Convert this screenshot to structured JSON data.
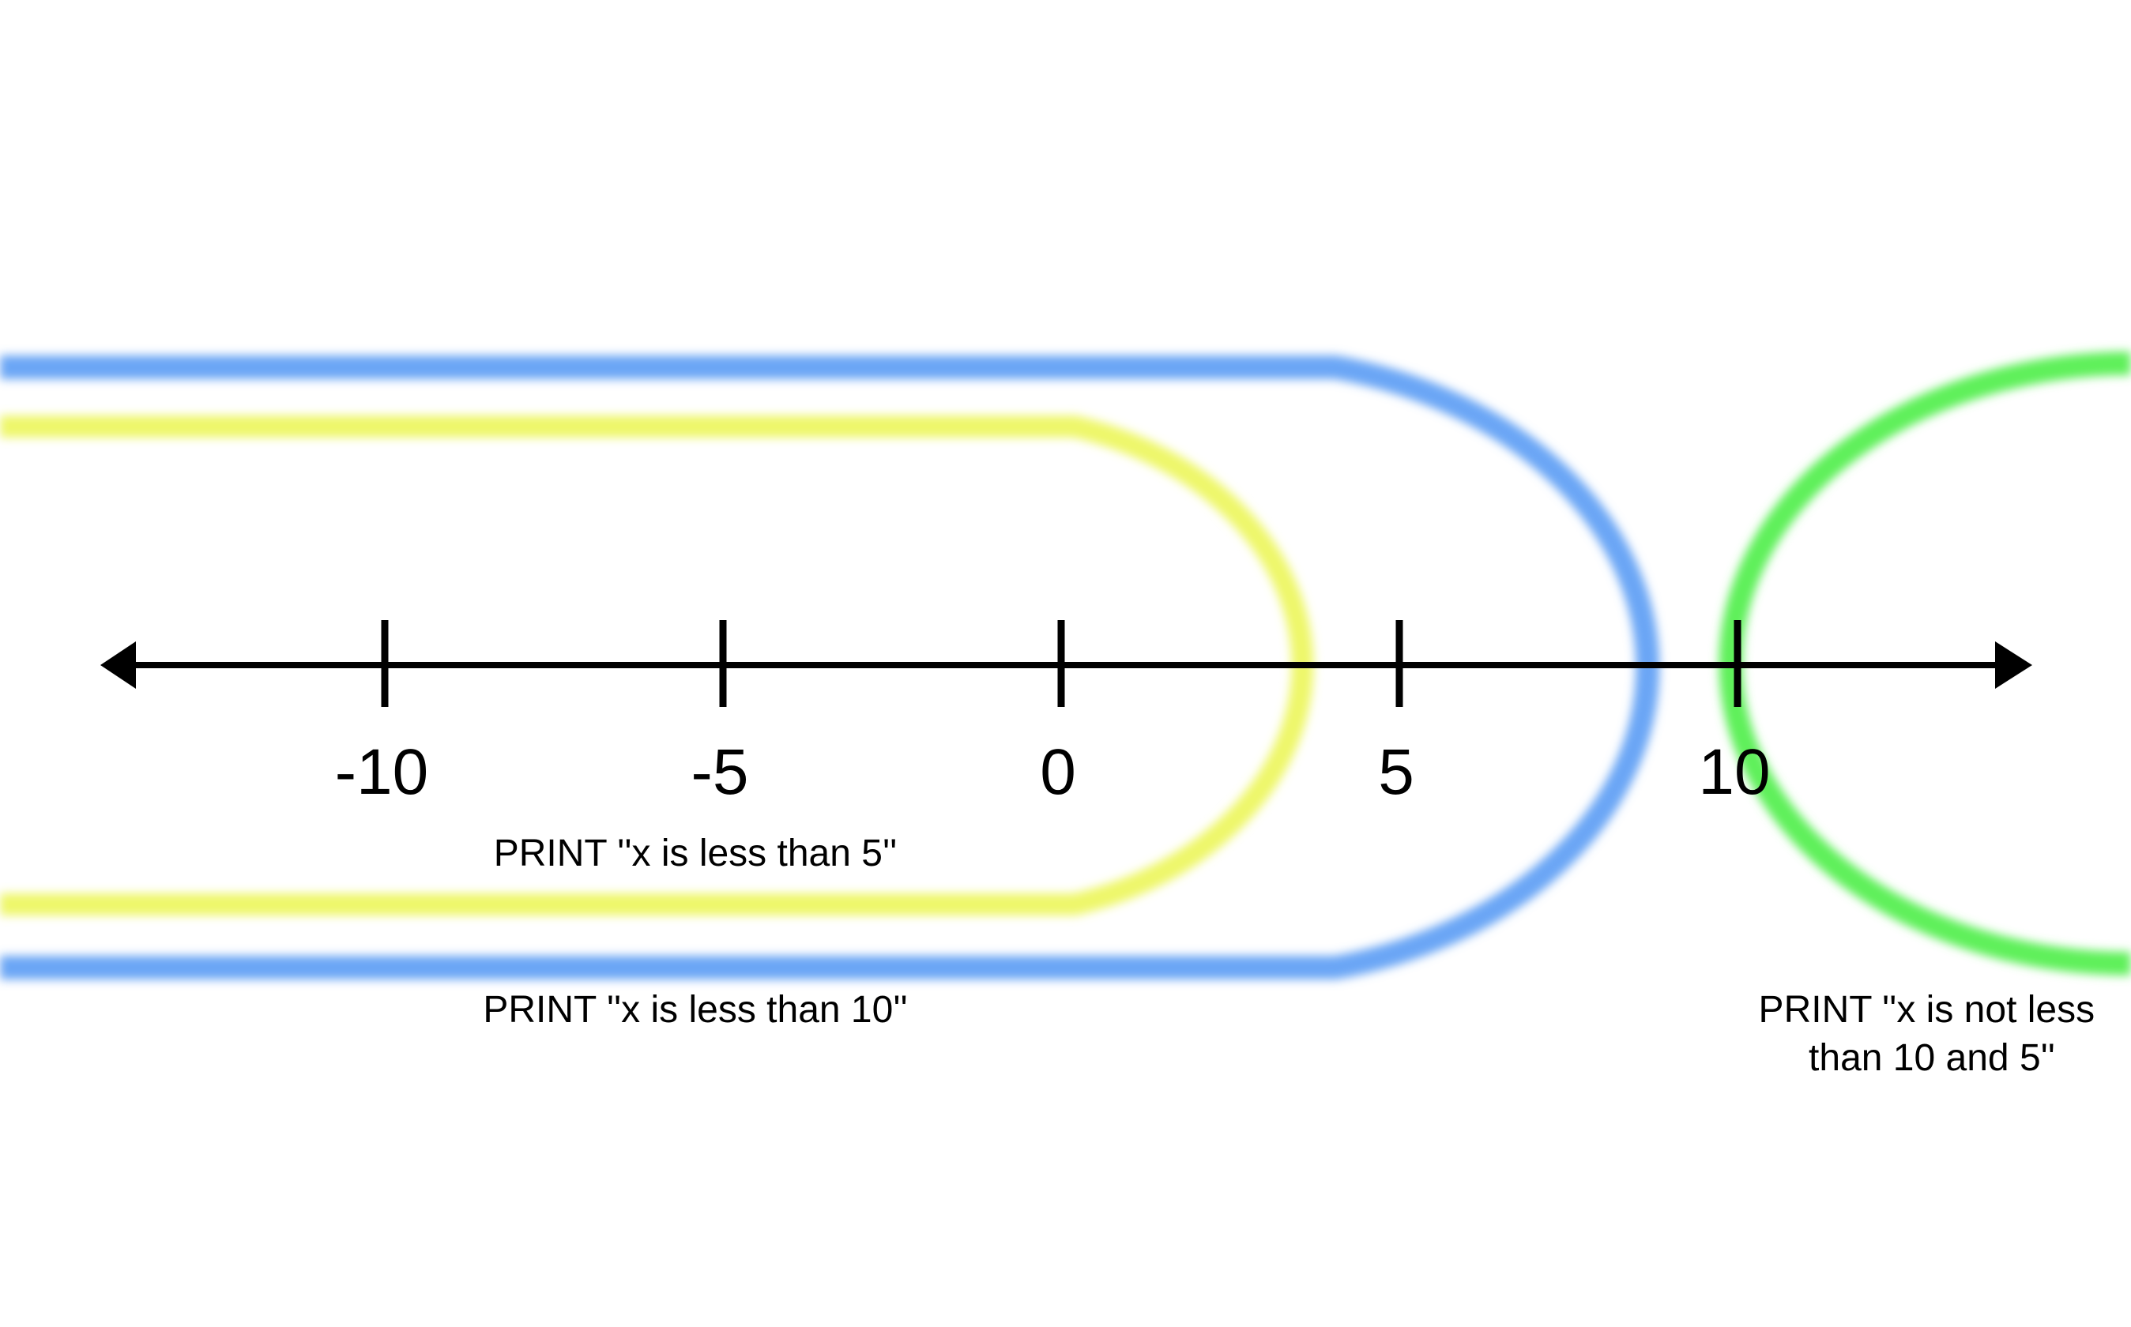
{
  "number_line": {
    "ticks": [
      -10,
      -5,
      0,
      5,
      10
    ],
    "tick_labels": [
      "-10",
      "-5",
      "0",
      "5",
      "10"
    ]
  },
  "regions": {
    "less_than_5": {
      "color": "#eef76a",
      "boundary": 5,
      "label": "PRINT ''x is less than 5''"
    },
    "less_than_10": {
      "color": "#6aa6f5",
      "boundary": 10,
      "label": "PRINT ''x is less than 10''"
    },
    "not_less_than_10": {
      "color": "#5ef05a",
      "boundary": 10,
      "label_lines": [
        "PRINT ''x is not less",
        "than 10 and 5''"
      ]
    }
  },
  "axis_color": "#000000"
}
